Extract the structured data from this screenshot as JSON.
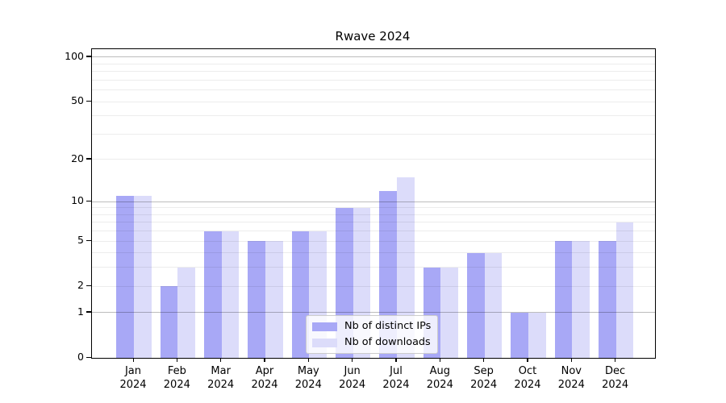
{
  "title": "Rwave 2024",
  "chart_data": {
    "type": "bar",
    "title": "Rwave 2024",
    "categories": [
      "Jan 2024",
      "Feb 2024",
      "Mar 2024",
      "Apr 2024",
      "May 2024",
      "Jun 2024",
      "Jul 2024",
      "Aug 2024",
      "Sep 2024",
      "Oct 2024",
      "Nov 2024",
      "Dec 2024"
    ],
    "x_tick_line1": [
      "Jan",
      "Feb",
      "Mar",
      "Apr",
      "May",
      "Jun",
      "Jul",
      "Aug",
      "Sep",
      "Oct",
      "Nov",
      "Dec"
    ],
    "x_tick_line2": "2024",
    "series": [
      {
        "name": "Nb of distinct IPs",
        "color": "#a8a8f6",
        "values": [
          11,
          2,
          6,
          5,
          6,
          9,
          12,
          3,
          4,
          1,
          5,
          5
        ]
      },
      {
        "name": "Nb of downloads",
        "color": "#dcdcfa",
        "values": [
          11,
          3,
          6,
          5,
          6,
          9,
          15,
          3,
          4,
          1,
          5,
          7
        ]
      }
    ],
    "xlabel": "",
    "ylabel": "",
    "yscale": "log1p",
    "ylim": [
      0,
      114
    ],
    "y_ticks": [
      0,
      1,
      2,
      5,
      10,
      20,
      50,
      100
    ],
    "grid_major_values": [
      1,
      10,
      100
    ],
    "grid_minor_values": [
      2,
      3,
      4,
      5,
      6,
      7,
      8,
      9,
      20,
      30,
      40,
      50,
      60,
      70,
      80,
      90
    ],
    "grid": "on",
    "legend": {
      "position": "lower center",
      "entries": [
        "Nb of distinct IPs",
        "Nb of downloads"
      ]
    }
  }
}
